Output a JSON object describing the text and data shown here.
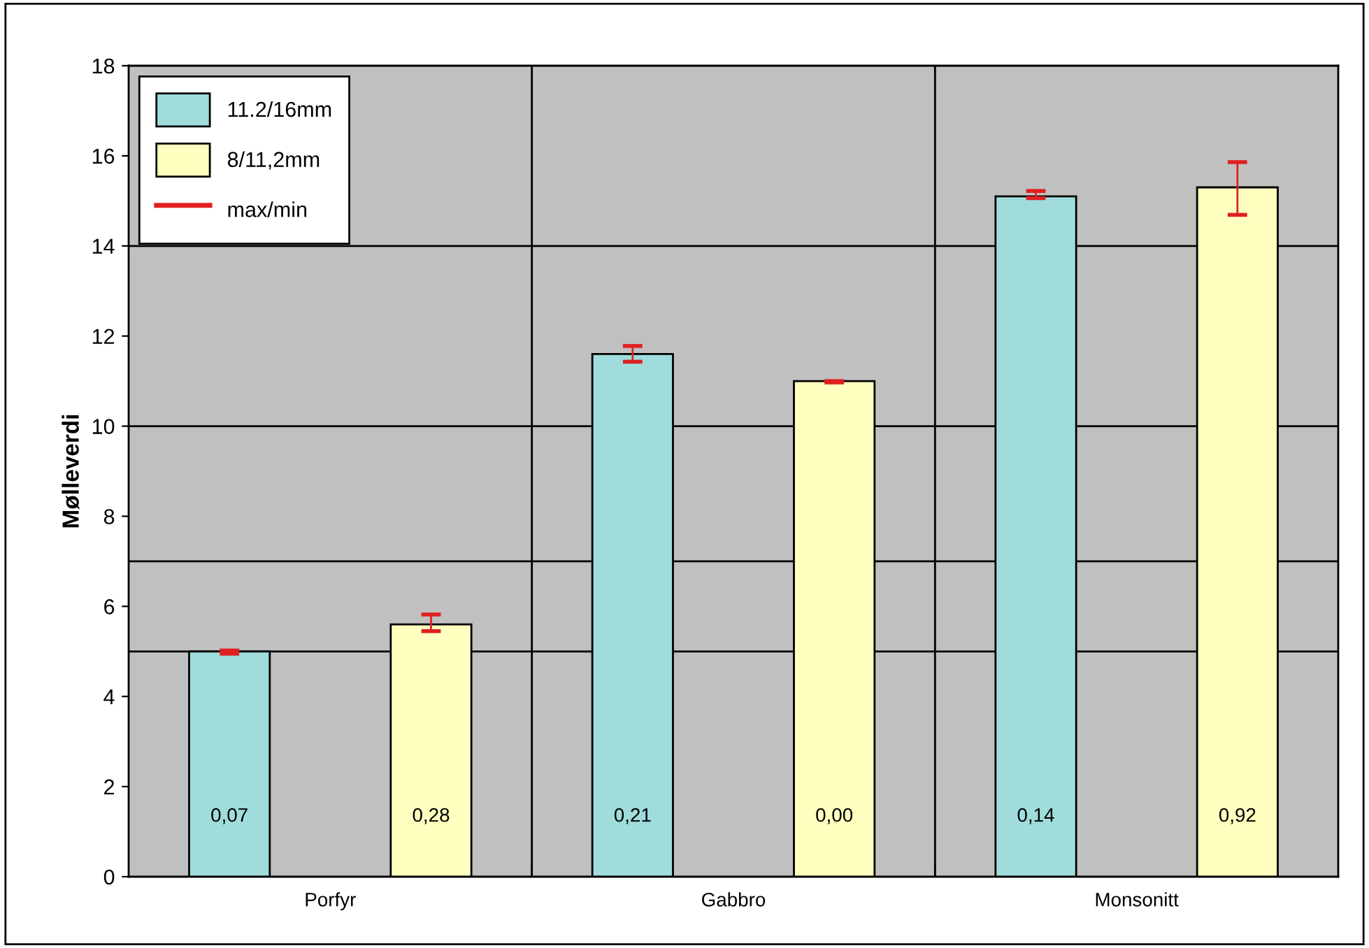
{
  "chart_data": {
    "type": "bar",
    "ylabel": "Mølleverdi",
    "categories": [
      "Porfyr",
      "Gabbro",
      "Monsonitt"
    ],
    "series": [
      {
        "name": "11.2/16mm",
        "color": "#a0dcdc",
        "values": [
          5.0,
          11.6,
          15.1
        ],
        "errors": [
          [
            4.95,
            5.02
          ],
          [
            11.43,
            11.78
          ],
          [
            15.06,
            15.22
          ]
        ]
      },
      {
        "name": "8/11,2mm",
        "color": "#ffffc0",
        "values": [
          5.6,
          11.0,
          15.3
        ],
        "errors": [
          [
            5.45,
            5.82
          ],
          [
            10.97,
            11.0
          ],
          [
            14.69,
            15.86
          ]
        ]
      }
    ],
    "annotations": [
      "max/min",
      "0,07",
      "0,21",
      "0,14",
      "0,28",
      "0,00",
      "0,92"
    ],
    "ylim": [
      0,
      18
    ],
    "yticks": [
      0,
      2,
      4,
      6,
      8,
      10,
      12,
      14,
      16,
      18
    ],
    "ref_lines": [
      {
        "axis": "y",
        "value": 5,
        "label": null
      },
      {
        "axis": "y",
        "value": 7,
        "label": null
      },
      {
        "axis": "y",
        "value": 10,
        "label": null
      },
      {
        "axis": "y",
        "value": 14,
        "label": null
      }
    ],
    "grid": "x",
    "legend": "top left"
  }
}
